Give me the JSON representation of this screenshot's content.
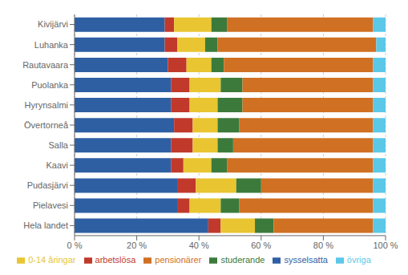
{
  "chart_data": {
    "type": "bar",
    "orientation": "horizontal",
    "stacked": true,
    "grid": true,
    "legend": "bottom",
    "categories": [
      "Kivijärvi",
      "Luhanka",
      "Rautavaara",
      "Puolanka",
      "Hyrynsalmi",
      "Övertorneå",
      "Salla",
      "Kaavi",
      "Pudasjärvi",
      "Pielavesi",
      "Hela landet"
    ],
    "series": [
      {
        "name": "sysselsatta",
        "color": "#2E5FA3",
        "values": [
          29,
          29,
          30,
          31,
          31,
          32,
          31,
          31,
          33,
          33,
          43
        ]
      },
      {
        "name": "arbetslösa",
        "color": "#C0392B",
        "values": [
          3,
          4,
          6,
          6,
          6,
          6,
          7,
          4,
          6,
          4,
          4
        ]
      },
      {
        "name": "0-14 åringar",
        "color": "#E8C531",
        "values": [
          12,
          9,
          8,
          10,
          9,
          8,
          8,
          9,
          13,
          10,
          11
        ]
      },
      {
        "name": "studerande",
        "color": "#3B7A3B",
        "values": [
          5,
          4,
          4,
          7,
          8,
          7,
          5,
          5,
          8,
          6,
          6
        ]
      },
      {
        "name": "pensionärer",
        "color": "#D07022",
        "values": [
          47,
          51,
          48,
          42,
          42,
          43,
          45,
          47,
          36,
          43,
          32
        ]
      },
      {
        "name": "övriga",
        "color": "#5BC8E8",
        "values": [
          4,
          3,
          4,
          4,
          4,
          4,
          4,
          4,
          4,
          4,
          4
        ]
      }
    ],
    "xlim": [
      0,
      100
    ],
    "xticks": [
      {
        "value": 0,
        "label": "0 %"
      },
      {
        "value": 20,
        "label": "20 %"
      },
      {
        "value": 40,
        "label": "40 %"
      },
      {
        "value": 60,
        "label": "60 %"
      },
      {
        "value": 80,
        "label": "80 %"
      },
      {
        "value": 100,
        "label": "100 %"
      }
    ]
  }
}
